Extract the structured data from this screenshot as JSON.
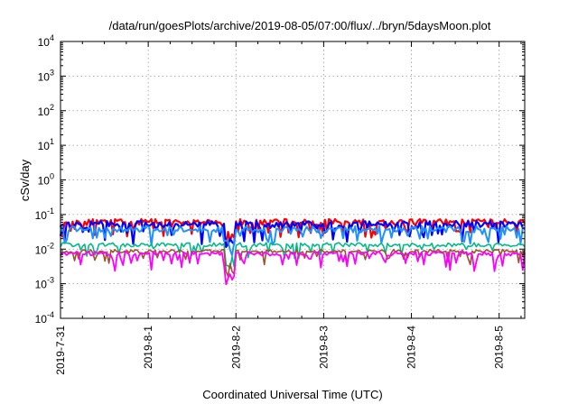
{
  "chart_data": {
    "type": "line",
    "title": "/data/run/goesPlots/archive/2019-08-05/07:00/flux/../bryn/5daysMoon.plot",
    "xlabel": "Coordinated Universal Time (UTC)",
    "ylabel": "cSv/day",
    "yscale": "log",
    "ylim": [
      0.0001,
      10000
    ],
    "xlim": [
      "2019-07-31T00:00",
      "2019-08-05T07:00"
    ],
    "y_ticks": [
      {
        "value": 0.0001,
        "base": "10",
        "exp": "-4"
      },
      {
        "value": 0.001,
        "base": "10",
        "exp": "-3"
      },
      {
        "value": 0.01,
        "base": "10",
        "exp": "-2"
      },
      {
        "value": 0.1,
        "base": "10",
        "exp": "-1"
      },
      {
        "value": 1,
        "base": "10",
        "exp": "0"
      },
      {
        "value": 10,
        "base": "10",
        "exp": "1"
      },
      {
        "value": 100,
        "base": "10",
        "exp": "2"
      },
      {
        "value": 1000,
        "base": "10",
        "exp": "3"
      },
      {
        "value": 10000,
        "base": "10",
        "exp": "4"
      }
    ],
    "x_ticks": [
      {
        "value": "2019-07-31T00:00",
        "label": "2019-7-31"
      },
      {
        "value": "2019-08-01T00:00",
        "label": "2019-8-1"
      },
      {
        "value": "2019-08-02T00:00",
        "label": "2019-8-2"
      },
      {
        "value": "2019-08-03T00:00",
        "label": "2019-8-3"
      },
      {
        "value": "2019-08-04T00:00",
        "label": "2019-8-4"
      },
      {
        "value": "2019-08-05T00:00",
        "label": "2019-8-5"
      }
    ],
    "grid": true,
    "legend": "none",
    "series": [
      {
        "color": "#ff0000",
        "width": 2.2,
        "base": 0.058,
        "spread": 0.18,
        "dip": 0.35,
        "seed": 11,
        "anomaly": {
          "start": "2019-08-01T21:00",
          "end": "2019-08-02T00:00",
          "value": 0.02
        }
      },
      {
        "color": "#0000ff",
        "width": 2.2,
        "base": 0.048,
        "spread": 0.22,
        "dip": 0.45,
        "seed": 23,
        "anomaly": {
          "start": "2019-08-01T21:00",
          "end": "2019-08-02T00:00",
          "value": 0.012
        }
      },
      {
        "color": "#1e90ff",
        "width": 2.0,
        "base": 0.036,
        "spread": 0.18,
        "dip": 0.35,
        "seed": 37,
        "anomaly": {
          "start": "2019-08-01T21:00",
          "end": "2019-08-02T00:00",
          "value": 0.01
        }
      },
      {
        "color": "#00bb88",
        "width": 1.6,
        "base": 0.013,
        "spread": 0.12,
        "dip": 0.3,
        "seed": 41,
        "anomaly": {
          "start": "2019-08-01T21:00",
          "end": "2019-08-02T00:00",
          "value": 0.004
        }
      },
      {
        "color": "#a0522d",
        "width": 1.6,
        "base": 0.0085,
        "spread": 0.1,
        "dip": 0.3,
        "seed": 53,
        "anomaly": {
          "start": "2019-08-01T21:00",
          "end": "2019-08-02T00:00",
          "value": 0.0025
        }
      },
      {
        "color": "#ff00ff",
        "width": 1.8,
        "base": 0.0072,
        "spread": 0.12,
        "dip": 0.4,
        "seed": 67,
        "anomaly": {
          "start": "2019-08-01T21:00",
          "end": "2019-08-02T00:00",
          "value": 0.0012
        }
      }
    ]
  }
}
